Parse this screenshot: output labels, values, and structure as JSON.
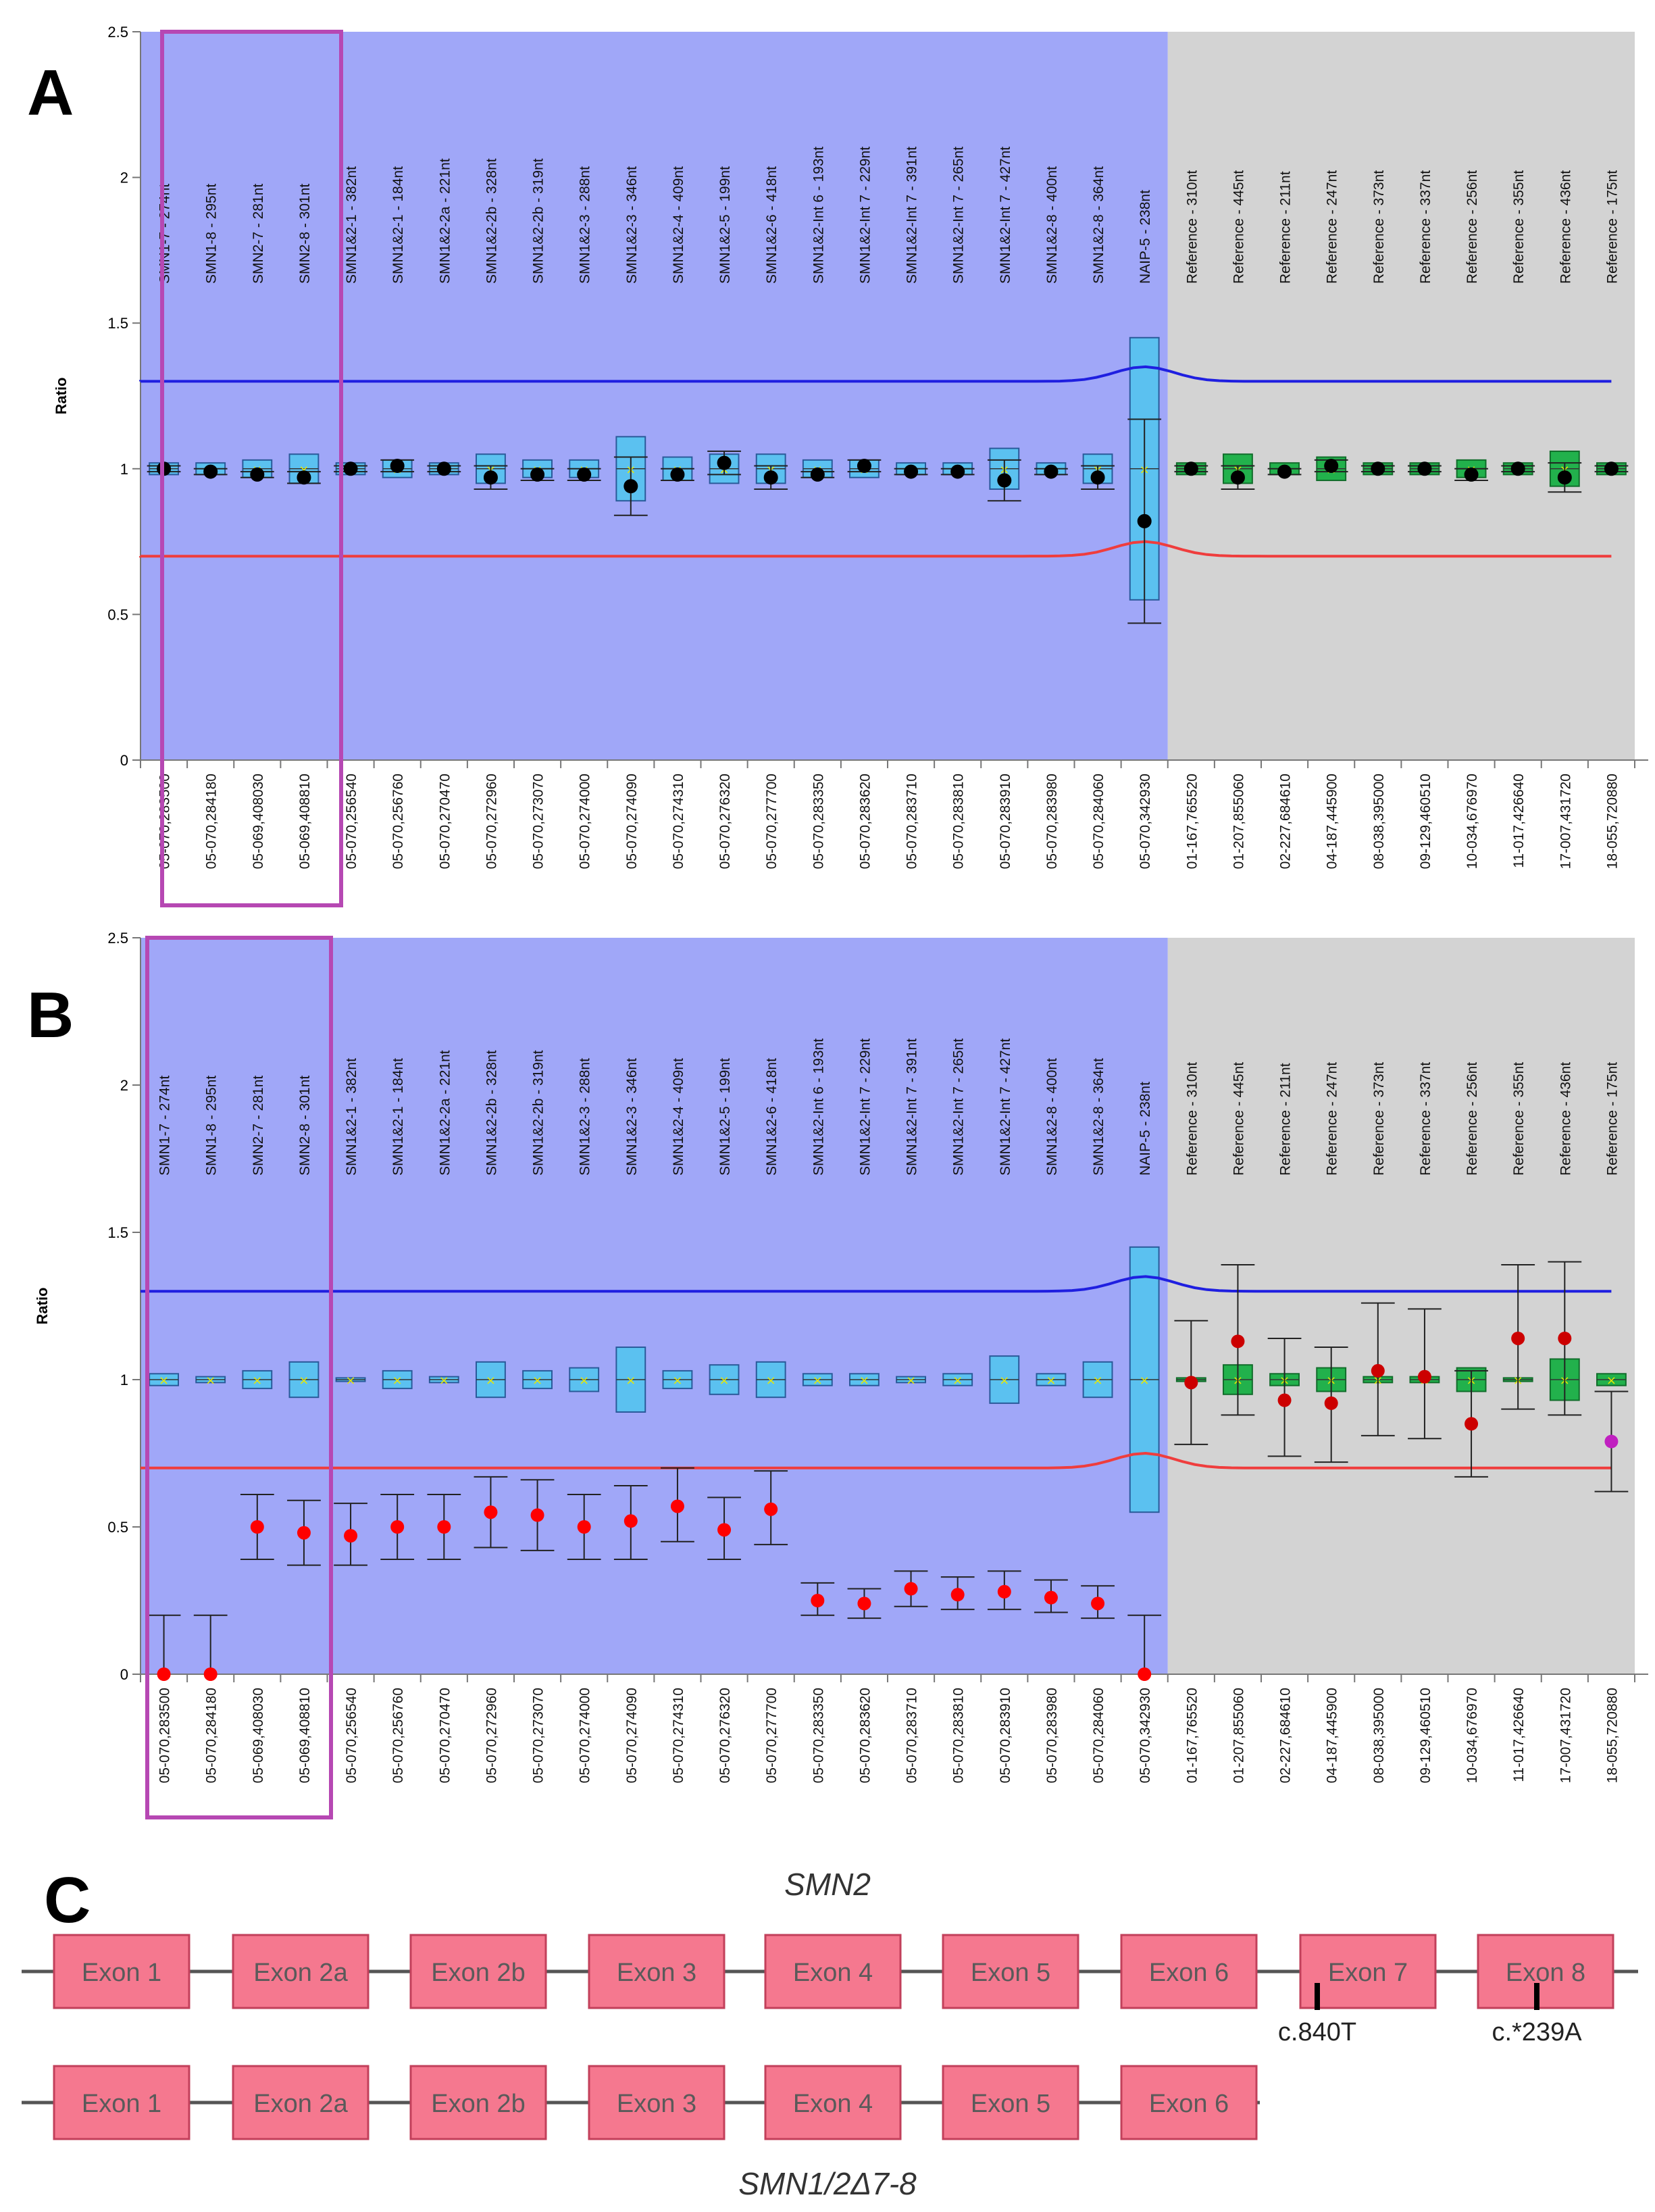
{
  "chart_data": [
    {
      "panel": "A",
      "type": "box",
      "ylabel": "Ratio",
      "ylim": [
        0,
        2.5
      ],
      "yticks": [
        "0",
        "0.5",
        "1",
        "1.5",
        "2",
        "2.5"
      ],
      "upper_threshold": 1.3,
      "lower_threshold": 0.7,
      "probes": [
        "SMN1-7 - 274nt",
        "SMN1-8 - 295nt",
        "SMN2-7 - 281nt",
        "SMN2-8 - 301nt",
        "SMN1&2-1 - 382nt",
        "SMN1&2-1 - 184nt",
        "SMN1&2-2a - 221nt",
        "SMN1&2-2b - 328nt",
        "SMN1&2-2b - 319nt",
        "SMN1&2-3 - 288nt",
        "SMN1&2-3 - 346nt",
        "SMN1&2-4 - 409nt",
        "SMN1&2-5 - 199nt",
        "SMN1&2-6 - 418nt",
        "SMN1&2-Int 6 - 193nt",
        "SMN1&2-Int 7 - 229nt",
        "SMN1&2-Int 7 - 391nt",
        "SMN1&2-Int 7 - 265nt",
        "SMN1&2-Int 7 - 427nt",
        "SMN1&2-8 - 400nt",
        "SMN1&2-8 - 364nt",
        "NAIP-5 - 238nt",
        "Reference - 310nt",
        "Reference - 445nt",
        "Reference - 211nt",
        "Reference - 247nt",
        "Reference - 373nt",
        "Reference - 337nt",
        "Reference - 256nt",
        "Reference - 355nt",
        "Reference - 436nt",
        "Reference - 175nt"
      ],
      "positions": [
        "05-070,283500",
        "05-070,284180",
        "05-069,408030",
        "05-069,408810",
        "05-070,256540",
        "05-070,256760",
        "05-070,270470",
        "05-070,272960",
        "05-070,273070",
        "05-070,274000",
        "05-070,274090",
        "05-070,274310",
        "05-070,276320",
        "05-070,277700",
        "05-070,283350",
        "05-070,283620",
        "05-070,283710",
        "05-070,283810",
        "05-070,283910",
        "05-070,283980",
        "05-070,284060",
        "05-070,342930",
        "01-167,765520",
        "01-207,855060",
        "02-227,684610",
        "04-187,445900",
        "08-038,395000",
        "09-129,460510",
        "10-034,676970",
        "11-017,426640",
        "17-007,431720",
        "18-055,720880"
      ],
      "box_half": [
        0.02,
        0.02,
        0.03,
        0.05,
        0.02,
        0.03,
        0.02,
        0.05,
        0.03,
        0.03,
        0.11,
        0.04,
        0.05,
        0.05,
        0.03,
        0.03,
        0.02,
        0.02,
        0.07,
        0.02,
        0.05,
        0.45,
        0.02,
        0.05,
        0.02,
        0.04,
        0.02,
        0.02,
        0.03,
        0.02,
        0.06,
        0.02
      ],
      "values": [
        1.0,
        0.99,
        0.98,
        0.97,
        1.0,
        1.01,
        1.0,
        0.97,
        0.98,
        0.98,
        0.94,
        0.98,
        1.02,
        0.97,
        0.98,
        1.01,
        0.99,
        0.99,
        0.96,
        0.99,
        0.97,
        0.82,
        1.0,
        0.97,
        0.99,
        1.01,
        1.0,
        1.0,
        0.98,
        1.0,
        0.97,
        1.0
      ],
      "err_low": [
        0.99,
        0.98,
        0.97,
        0.95,
        0.99,
        0.99,
        0.99,
        0.93,
        0.96,
        0.96,
        0.84,
        0.96,
        0.98,
        0.93,
        0.97,
        0.99,
        0.98,
        0.98,
        0.89,
        0.98,
        0.93,
        0.47,
        0.99,
        0.93,
        0.98,
        0.99,
        0.99,
        0.99,
        0.96,
        0.99,
        0.92,
        0.99
      ],
      "err_high": [
        1.01,
        1.0,
        0.99,
        0.99,
        1.01,
        1.03,
        1.01,
        1.01,
        1.0,
        1.0,
        1.04,
        1.0,
        1.06,
        1.01,
        0.99,
        1.03,
        1.0,
        1.0,
        1.03,
        1.0,
        1.01,
        1.17,
        1.01,
        1.01,
        1.0,
        1.03,
        1.01,
        1.01,
        1.0,
        1.01,
        1.02,
        1.01
      ],
      "colors": {
        "probe_region": "#a0a7f8",
        "reference_region": "#d3d3d3",
        "box_probe": "#5bc1f0",
        "box_reference": "#22b14c",
        "upper_line": "#1f1fe0",
        "lower_line": "#ef3d3d",
        "point": "#000000",
        "highlight": "#b648b3"
      }
    },
    {
      "panel": "B",
      "type": "box",
      "ylabel": "Ratio",
      "ylim": [
        0,
        2.5
      ],
      "yticks": [
        "0",
        "0.5",
        "1",
        "1.5",
        "2",
        "2.5"
      ],
      "upper_threshold": 1.3,
      "lower_threshold": 0.7,
      "probes": [
        "SMN1-7 - 274nt",
        "SMN1-8 - 295nt",
        "SMN2-7 - 281nt",
        "SMN2-8 - 301nt",
        "SMN1&2-1 - 382nt",
        "SMN1&2-1 - 184nt",
        "SMN1&2-2a - 221nt",
        "SMN1&2-2b - 328nt",
        "SMN1&2-2b - 319nt",
        "SMN1&2-3 - 288nt",
        "SMN1&2-3 - 346nt",
        "SMN1&2-4 - 409nt",
        "SMN1&2-5 - 199nt",
        "SMN1&2-6 - 418nt",
        "SMN1&2-Int 6 - 193nt",
        "SMN1&2-Int 7 - 229nt",
        "SMN1&2-Int 7 - 391nt",
        "SMN1&2-Int 7 - 265nt",
        "SMN1&2-Int 7 - 427nt",
        "SMN1&2-8 - 400nt",
        "SMN1&2-8 - 364nt",
        "NAIP-5 - 238nt",
        "Reference - 310nt",
        "Reference - 445nt",
        "Reference - 211nt",
        "Reference - 247nt",
        "Reference - 373nt",
        "Reference - 337nt",
        "Reference - 256nt",
        "Reference - 355nt",
        "Reference - 436nt",
        "Reference - 175nt"
      ],
      "positions": [
        "05-070,283500",
        "05-070,284180",
        "05-069,408030",
        "05-069,408810",
        "05-070,256540",
        "05-070,256760",
        "05-070,270470",
        "05-070,272960",
        "05-070,273070",
        "05-070,274000",
        "05-070,274090",
        "05-070,274310",
        "05-070,276320",
        "05-070,277700",
        "05-070,283350",
        "05-070,283620",
        "05-070,283710",
        "05-070,283810",
        "05-070,283910",
        "05-070,283980",
        "05-070,284060",
        "05-070,342930",
        "01-167,765520",
        "01-207,855060",
        "02-227,684610",
        "04-187,445900",
        "08-038,395000",
        "09-129,460510",
        "10-034,676970",
        "11-017,426640",
        "17-007,431720",
        "18-055,720880"
      ],
      "box_half": [
        0.02,
        0.01,
        0.03,
        0.06,
        0.0,
        0.03,
        0.01,
        0.06,
        0.03,
        0.04,
        0.11,
        0.03,
        0.05,
        0.06,
        0.02,
        0.02,
        0.01,
        0.02,
        0.08,
        0.02,
        0.06,
        0.45,
        0.0,
        0.05,
        0.02,
        0.04,
        0.01,
        0.01,
        0.04,
        0.0,
        0.07,
        0.02
      ],
      "values": [
        0.0,
        0.0,
        0.5,
        0.48,
        0.47,
        0.5,
        0.5,
        0.55,
        0.54,
        0.5,
        0.52,
        0.57,
        0.49,
        0.56,
        0.25,
        0.24,
        0.29,
        0.27,
        0.28,
        0.26,
        0.24,
        0.0,
        0.99,
        1.13,
        0.93,
        0.92,
        1.03,
        1.01,
        0.85,
        1.14,
        1.14,
        0.79
      ],
      "err_low": [
        0.0,
        0.0,
        0.39,
        0.37,
        0.37,
        0.39,
        0.39,
        0.43,
        0.42,
        0.39,
        0.39,
        0.45,
        0.39,
        0.44,
        0.2,
        0.19,
        0.23,
        0.22,
        0.22,
        0.21,
        0.19,
        0.0,
        0.78,
        0.88,
        0.74,
        0.72,
        0.81,
        0.8,
        0.67,
        0.9,
        0.88,
        0.62
      ],
      "err_high": [
        0.2,
        0.2,
        0.61,
        0.59,
        0.58,
        0.61,
        0.61,
        0.67,
        0.66,
        0.61,
        0.64,
        0.7,
        0.6,
        0.69,
        0.31,
        0.29,
        0.35,
        0.33,
        0.35,
        0.32,
        0.3,
        0.2,
        1.2,
        1.39,
        1.14,
        1.11,
        1.26,
        1.24,
        1.03,
        1.39,
        1.4,
        0.96
      ],
      "point_colors": [
        "#ff0000",
        "#ff0000",
        "#ff0000",
        "#ff0000",
        "#ff0000",
        "#ff0000",
        "#ff0000",
        "#ff0000",
        "#ff0000",
        "#ff0000",
        "#ff0000",
        "#ff0000",
        "#ff0000",
        "#ff0000",
        "#ff0000",
        "#ff0000",
        "#ff0000",
        "#ff0000",
        "#ff0000",
        "#ff0000",
        "#ff0000",
        "#ff0000",
        "#cc0000",
        "#cc0000",
        "#cc0000",
        "#cc0000",
        "#cc0000",
        "#cc0000",
        "#cc0000",
        "#cc0000",
        "#cc0000",
        "#c020c0"
      ],
      "colors": {
        "probe_region": "#a0a7f8",
        "reference_region": "#d3d3d3",
        "box_probe": "#5bc1f0",
        "box_reference": "#22b14c",
        "upper_line": "#1f1fe0",
        "lower_line": "#ef3d3d",
        "highlight": "#b648b3"
      }
    }
  ],
  "panels": {
    "a": "A",
    "b": "B",
    "c": "C"
  },
  "gene_diagram": {
    "title_top": "SMN2",
    "title_bottom": "SMN1/2Δ7-8",
    "exon_color": "#f5788f",
    "row1": [
      "Exon 1",
      "Exon 2a",
      "Exon 2b",
      "Exon 3",
      "Exon 4",
      "Exon 5",
      "Exon 6",
      "Exon 7",
      "Exon 8"
    ],
    "row2": [
      "Exon 1",
      "Exon 2a",
      "Exon 2b",
      "Exon 3",
      "Exon 4",
      "Exon 5",
      "Exon 6"
    ],
    "variants": [
      {
        "exon": "Exon 7",
        "label": "c.840T"
      },
      {
        "exon": "Exon 8",
        "label": "c.*239A"
      }
    ]
  }
}
